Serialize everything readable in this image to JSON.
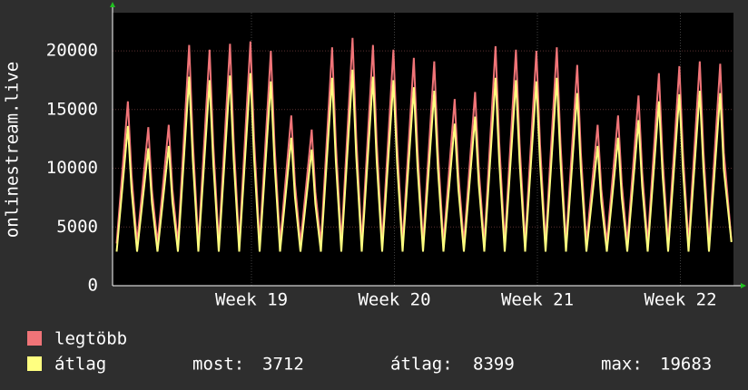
{
  "chart_data": {
    "type": "line",
    "y_label": "onlinestream.live",
    "xlim": [
      0,
      30.4
    ],
    "xticks": [
      {
        "value": 6.8,
        "label": "Week 19"
      },
      {
        "value": 13.8,
        "label": "Week 20"
      },
      {
        "value": 20.8,
        "label": "Week 21"
      },
      {
        "value": 27.8,
        "label": "Week 22"
      }
    ],
    "ylim": [
      0,
      23250
    ],
    "yticks": [
      0,
      5000,
      10000,
      15000,
      20000
    ],
    "grid": true,
    "x": [
      0.2,
      0.75,
      0.93,
      1.2,
      1.75,
      1.93,
      2.2,
      2.75,
      2.93,
      3.2,
      3.75,
      3.93,
      4.2,
      4.75,
      4.93,
      5.2,
      5.75,
      5.93,
      6.2,
      6.75,
      6.93,
      7.2,
      7.75,
      7.93,
      8.2,
      8.75,
      8.93,
      9.2,
      9.75,
      9.93,
      10.2,
      10.75,
      10.93,
      11.2,
      11.75,
      11.93,
      12.2,
      12.75,
      12.93,
      13.2,
      13.75,
      13.93,
      14.2,
      14.75,
      14.93,
      15.2,
      15.75,
      15.93,
      16.2,
      16.75,
      16.93,
      17.2,
      17.75,
      17.93,
      18.2,
      18.75,
      18.93,
      19.2,
      19.75,
      19.93,
      20.2,
      20.75,
      20.93,
      21.2,
      21.75,
      21.93,
      22.2,
      22.75,
      22.93,
      23.2,
      23.75,
      23.93,
      24.2,
      24.75,
      24.93,
      25.2,
      25.75,
      25.93,
      26.2,
      26.75,
      26.93,
      27.2,
      27.75,
      27.93,
      28.2,
      28.75,
      28.93,
      29.2,
      29.75,
      29.93,
      30.3
    ],
    "series": [
      {
        "name": "legtöbb",
        "color": "#f07478",
        "values": [
          3600,
          15700,
          9420,
          3600,
          13500,
          8100,
          3600,
          13700,
          8220,
          3600,
          20500,
          12300,
          3600,
          20100,
          12060,
          3600,
          20600,
          12360,
          3600,
          20800,
          12480,
          3600,
          20000,
          12000,
          3600,
          14500,
          8700,
          3600,
          13300,
          7980,
          3600,
          20300,
          12180,
          3600,
          21100,
          12660,
          3600,
          20500,
          12300,
          3600,
          20100,
          12060,
          3600,
          19400,
          11640,
          3600,
          19100,
          11460,
          3600,
          15900,
          9540,
          3600,
          16500,
          9900,
          3600,
          20400,
          12240,
          3600,
          20100,
          12060,
          3600,
          20000,
          12000,
          3600,
          20300,
          12180,
          3600,
          18800,
          11280,
          3600,
          13700,
          8220,
          3600,
          14500,
          8700,
          3600,
          16200,
          9720,
          3600,
          18100,
          10860,
          3600,
          18700,
          11220,
          3600,
          19100,
          11460,
          3600,
          18900,
          11340,
          3800
        ]
      },
      {
        "name": "átlag",
        "color": "#ffff80",
        "values": [
          2900,
          13600,
          8160,
          2900,
          11700,
          7020,
          2900,
          11900,
          7140,
          2900,
          17800,
          10680,
          2900,
          17500,
          10500,
          2900,
          17900,
          10740,
          2900,
          18100,
          10860,
          2900,
          17400,
          10440,
          2900,
          12600,
          7560,
          2900,
          11600,
          6960,
          2900,
          17700,
          10620,
          2900,
          18400,
          11040,
          2900,
          17800,
          10680,
          2900,
          17500,
          10500,
          2900,
          16900,
          10140,
          2900,
          16600,
          9960,
          2900,
          13800,
          8280,
          2900,
          14400,
          8640,
          2900,
          17700,
          10620,
          2900,
          17500,
          10500,
          2900,
          17400,
          10440,
          2900,
          17700,
          10620,
          2900,
          16400,
          9840,
          2900,
          11900,
          7140,
          2900,
          12600,
          7560,
          2900,
          14100,
          8460,
          2900,
          15700,
          9420,
          2900,
          16300,
          9780,
          2900,
          16600,
          9960,
          2900,
          16400,
          9840,
          3712
        ]
      }
    ],
    "stats": [
      {
        "label": "most:",
        "value": 3712
      },
      {
        "label": "átlag:",
        "value": 8399
      },
      {
        "label": "max:",
        "value": 19683
      }
    ]
  }
}
